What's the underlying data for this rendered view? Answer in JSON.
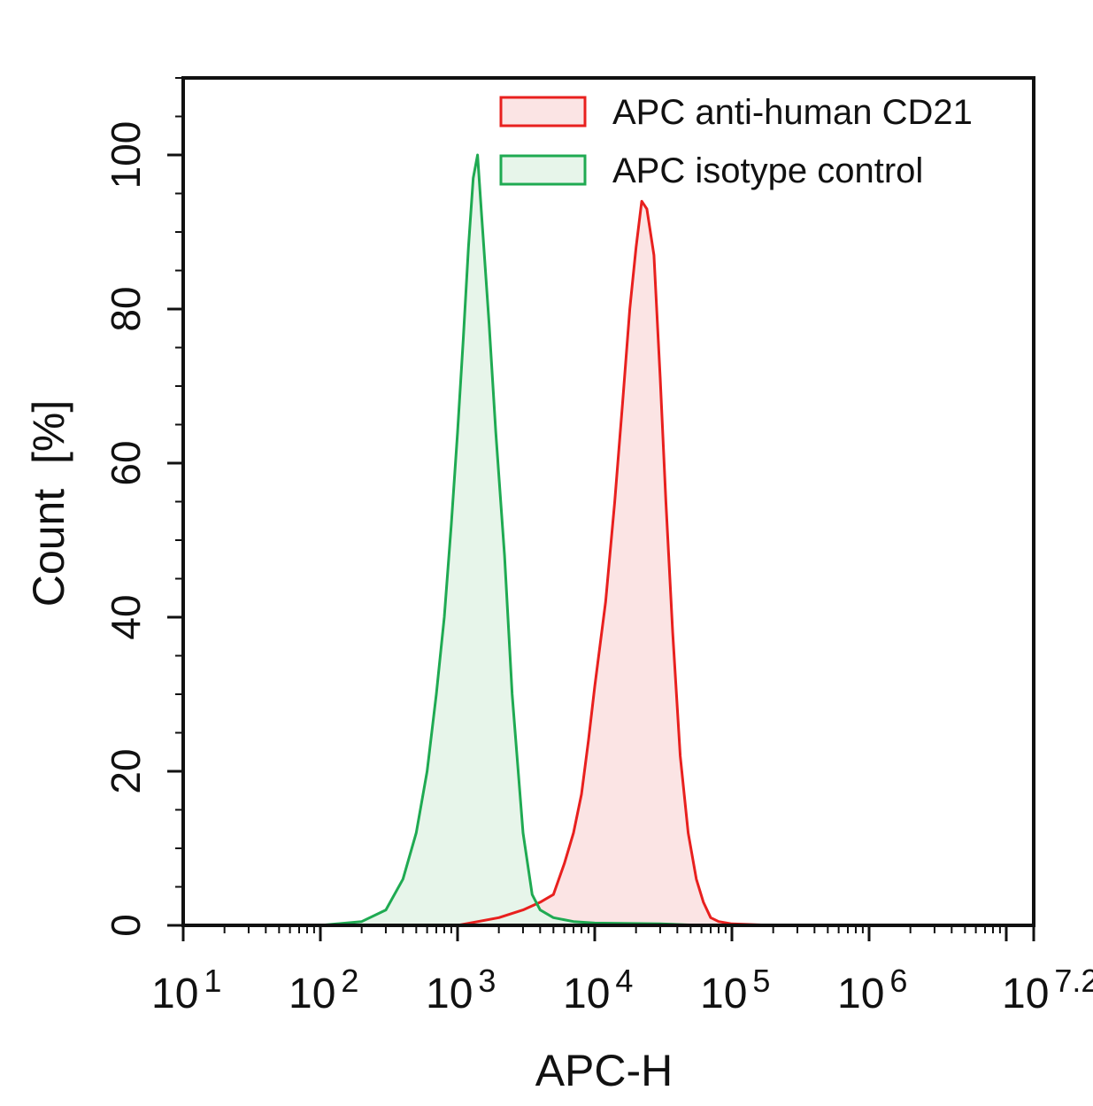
{
  "chart_data": {
    "type": "area",
    "xlabel": "APC-H",
    "ylabel": "Count  [%]",
    "x_scale": "log10",
    "xlim": [
      10,
      15848931.92
    ],
    "ylim": [
      0,
      110
    ],
    "x_ticks": [
      {
        "base": "10",
        "exp": "1",
        "value": 10
      },
      {
        "base": "10",
        "exp": "2",
        "value": 100
      },
      {
        "base": "10",
        "exp": "3",
        "value": 1000
      },
      {
        "base": "10",
        "exp": "4",
        "value": 10000
      },
      {
        "base": "10",
        "exp": "5",
        "value": 100000
      },
      {
        "base": "10",
        "exp": "6",
        "value": 1000000
      },
      {
        "base": "10",
        "exp": "7.2",
        "value": 15848931.92
      }
    ],
    "y_ticks": [
      "0",
      "20",
      "40",
      "60",
      "80",
      "100"
    ],
    "y_tick_values": [
      0,
      20,
      40,
      60,
      80,
      100
    ],
    "legend_position": "top-right",
    "grid": false,
    "series": [
      {
        "name": "APC anti-human CD21",
        "color": "#e8201e",
        "fill": "#fbe4e4",
        "x": [
          1000,
          2000,
          3000,
          4000,
          5000,
          6000,
          7000,
          8000,
          9000,
          10000,
          12000,
          14000,
          16000,
          18000,
          20000,
          22000,
          24000,
          27000,
          30000,
          33000,
          37000,
          42000,
          48000,
          55000,
          62000,
          70000,
          80000,
          100000,
          200000
        ],
        "values": [
          0,
          1,
          2,
          3,
          4,
          8,
          12,
          17,
          24,
          31,
          42,
          55,
          68,
          80,
          88,
          94,
          93,
          87,
          71,
          55,
          38,
          22,
          12,
          6,
          3,
          1,
          0.5,
          0.2,
          0
        ]
      },
      {
        "name": "APC isotype control",
        "color": "#1faa52",
        "fill": "#e7f5ea",
        "x": [
          100,
          200,
          300,
          400,
          500,
          600,
          700,
          800,
          900,
          1000,
          1100,
          1200,
          1300,
          1400,
          1500,
          1700,
          1900,
          2200,
          2500,
          3000,
          3500,
          4000,
          5000,
          7000,
          10000,
          30000,
          60000
        ],
        "values": [
          0,
          0.5,
          2,
          6,
          12,
          20,
          30,
          40,
          52,
          64,
          76,
          88,
          97,
          100,
          92,
          78,
          64,
          48,
          30,
          12,
          4,
          2,
          1,
          0.5,
          0.3,
          0.2,
          0
        ]
      }
    ]
  }
}
